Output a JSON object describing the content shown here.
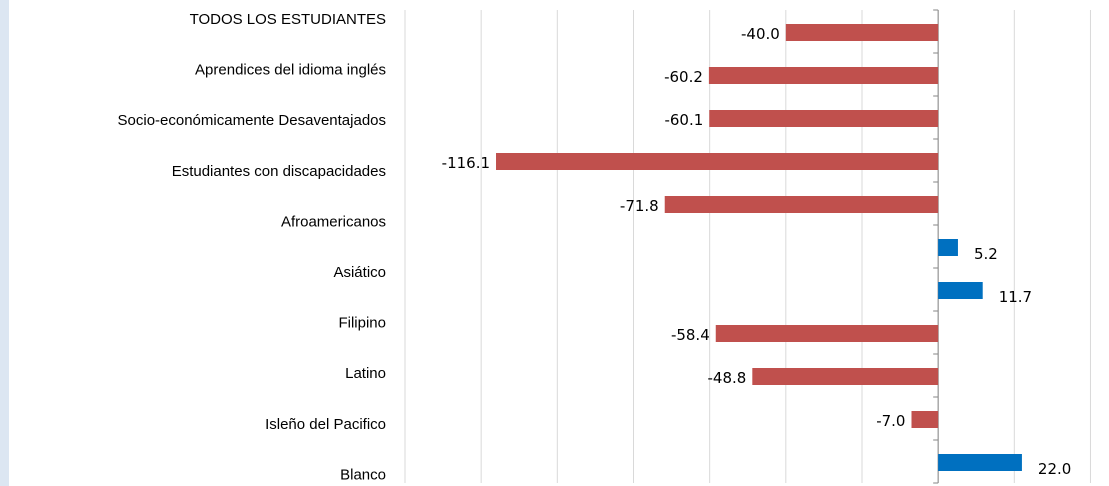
{
  "chart_data": {
    "type": "barh",
    "categories": [
      "TODOS LOS ESTUDIANTES",
      "Aprendices del idioma inglés",
      "Socio-económicamente Desaventajados",
      "Estudiantes con discapacidades",
      "Afroamericanos",
      null,
      "Asiático",
      "Filipino",
      "Latino",
      "Isleño del Pacifico",
      "Blanco"
    ],
    "values": [
      -40.0,
      -60.2,
      -60.1,
      -116.1,
      -71.8,
      5.2,
      11.7,
      -58.4,
      -48.8,
      -7.0,
      22.0
    ],
    "value_labels": [
      "-40.0",
      "-60.2",
      "-60.1",
      "-116.1",
      "-71.8",
      "5.2",
      "11.7",
      "-58.4",
      "-48.8",
      "-7.0",
      "22.0"
    ],
    "colors": {
      "negative": "#c0504d",
      "positive": "#0070c0"
    },
    "xlim": [
      -140,
      42.5
    ],
    "xticks": [
      -140,
      -120,
      -100,
      -80,
      -60,
      -40,
      -20,
      0,
      20,
      40
    ],
    "tick_labels": false,
    "grid": true
  }
}
